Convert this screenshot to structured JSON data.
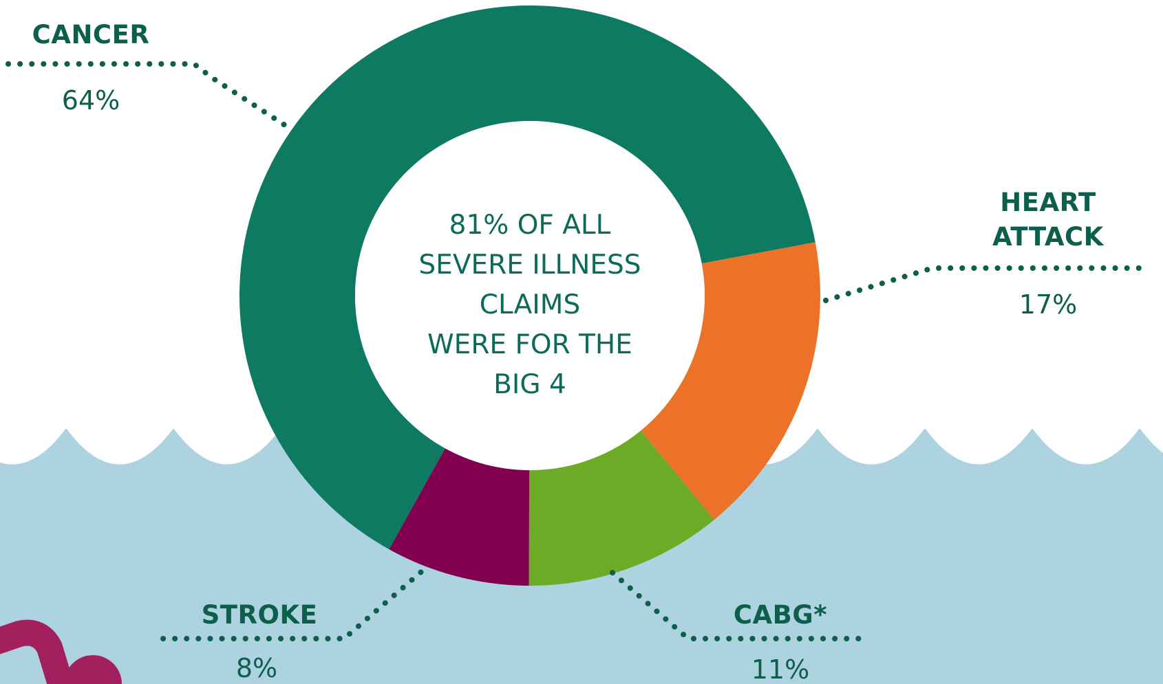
{
  "colors": {
    "cancer": "#0e7a61",
    "heart_attack": "#eb7228",
    "cabg": "#6daa25",
    "stroke": "#820050",
    "water": "#add3e0",
    "label_text": "#0d5f4b",
    "decoration_magenta": "#a3205e"
  },
  "center_text": {
    "line1": "81% OF ALL",
    "line2": "SEVERE ILLNESS",
    "line3": "CLAIMS",
    "line4": "WERE FOR THE",
    "line5": "BIG 4"
  },
  "labels": {
    "cancer": {
      "name": "CANCER",
      "value": "64%"
    },
    "heart_attack": {
      "name_line1": "HEART",
      "name_line2": "ATTACK",
      "value": "17%"
    },
    "cabg": {
      "name": "CABG*",
      "value": "11%"
    },
    "stroke": {
      "name": "STROKE",
      "value": "8%"
    }
  },
  "chart_data": {
    "type": "pie",
    "donut": true,
    "title": "",
    "center_label": "81% OF ALL SEVERE ILLNESS CLAIMS WERE FOR THE BIG 4",
    "categories": [
      "CANCER",
      "HEART ATTACK",
      "CABG*",
      "STROKE"
    ],
    "values": [
      64,
      17,
      11,
      8
    ],
    "unit": "%",
    "colors": [
      "#0e7a61",
      "#eb7228",
      "#6daa25",
      "#820050"
    ],
    "start_angle_deg_clockwise_from_top": 209,
    "legend": "none (direct labels with dotted leader lines)"
  }
}
